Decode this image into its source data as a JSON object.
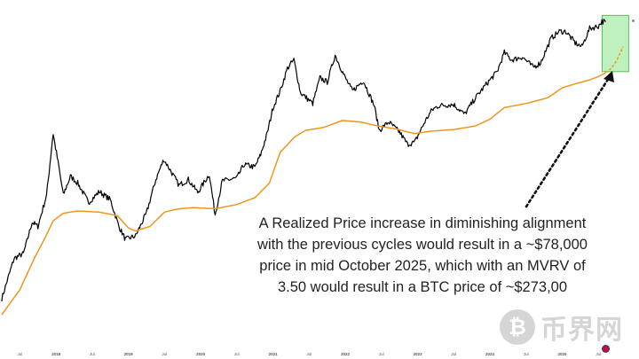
{
  "chart_data": {
    "type": "line",
    "title": "",
    "xlabel": "",
    "ylabel": "",
    "x_ticks": [
      "Jul",
      "2018",
      "Jul",
      "2019",
      "Jul",
      "2020",
      "Jul",
      "2021",
      "Jul",
      "2022",
      "Jul",
      "2023",
      "Jul",
      "2024",
      "Jul",
      "2025",
      "Jul"
    ],
    "x_range": [
      2017.25,
      2025.62
    ],
    "y_scale": "log",
    "y_axis_labels_visible": false,
    "grid": false,
    "series": [
      {
        "color": "#000000",
        "points": [
          [
            2017.25,
            1300
          ],
          [
            2017.42,
            2500
          ],
          [
            2017.55,
            2700
          ],
          [
            2017.67,
            4500
          ],
          [
            2017.75,
            4200
          ],
          [
            2017.87,
            7000
          ],
          [
            2017.96,
            19000
          ],
          [
            2018.04,
            11000
          ],
          [
            2018.1,
            7000
          ],
          [
            2018.2,
            9500
          ],
          [
            2018.3,
            8500
          ],
          [
            2018.45,
            6200
          ],
          [
            2018.6,
            7400
          ],
          [
            2018.75,
            6500
          ],
          [
            2018.87,
            4200
          ],
          [
            2018.96,
            3400
          ],
          [
            2019.1,
            3600
          ],
          [
            2019.25,
            5200
          ],
          [
            2019.38,
            9000
          ],
          [
            2019.49,
            12500
          ],
          [
            2019.58,
            10500
          ],
          [
            2019.7,
            8200
          ],
          [
            2019.83,
            9000
          ],
          [
            2019.96,
            7300
          ],
          [
            2020.12,
            9800
          ],
          [
            2020.2,
            5100
          ],
          [
            2020.3,
            8800
          ],
          [
            2020.5,
            9200
          ],
          [
            2020.6,
            11500
          ],
          [
            2020.75,
            11000
          ],
          [
            2020.83,
            13500
          ],
          [
            2020.92,
            19000
          ],
          [
            2021.0,
            29000
          ],
          [
            2021.1,
            38000
          ],
          [
            2021.2,
            55000
          ],
          [
            2021.29,
            63000
          ],
          [
            2021.38,
            37000
          ],
          [
            2021.55,
            31000
          ],
          [
            2021.65,
            47000
          ],
          [
            2021.75,
            44000
          ],
          [
            2021.86,
            68000
          ],
          [
            2022.0,
            47000
          ],
          [
            2022.1,
            38000
          ],
          [
            2022.25,
            45000
          ],
          [
            2022.4,
            30000
          ],
          [
            2022.47,
            20000
          ],
          [
            2022.6,
            23000
          ],
          [
            2022.75,
            19500
          ],
          [
            2022.86,
            16000
          ],
          [
            2022.96,
            16500
          ],
          [
            2023.1,
            23000
          ],
          [
            2023.2,
            28000
          ],
          [
            2023.3,
            30000
          ],
          [
            2023.5,
            30500
          ],
          [
            2023.65,
            26000
          ],
          [
            2023.8,
            34000
          ],
          [
            2023.96,
            43000
          ],
          [
            2024.1,
            52000
          ],
          [
            2024.2,
            71000
          ],
          [
            2024.3,
            63000
          ],
          [
            2024.45,
            66000
          ],
          [
            2024.6,
            56000
          ],
          [
            2024.7,
            60000
          ],
          [
            2024.85,
            90000
          ],
          [
            2024.96,
            100000
          ],
          [
            2025.05,
            100000
          ],
          [
            2025.18,
            83000
          ],
          [
            2025.27,
            78000
          ],
          [
            2025.38,
            105000
          ],
          [
            2025.5,
            109000
          ],
          [
            2025.55,
            118000
          ],
          [
            2025.6,
            117000
          ]
        ]
      },
      {
        "color": "#f0951d",
        "points": [
          [
            2017.25,
            1000
          ],
          [
            2017.5,
            1500
          ],
          [
            2017.7,
            2500
          ],
          [
            2017.85,
            3500
          ],
          [
            2017.96,
            4600
          ],
          [
            2018.1,
            5200
          ],
          [
            2018.3,
            5400
          ],
          [
            2018.6,
            5300
          ],
          [
            2018.85,
            5000
          ],
          [
            2019.0,
            4100
          ],
          [
            2019.1,
            3900
          ],
          [
            2019.3,
            4200
          ],
          [
            2019.5,
            5300
          ],
          [
            2019.7,
            5600
          ],
          [
            2019.9,
            5700
          ],
          [
            2020.2,
            5600
          ],
          [
            2020.5,
            6000
          ],
          [
            2020.75,
            6700
          ],
          [
            2020.95,
            8500
          ],
          [
            2021.1,
            14000
          ],
          [
            2021.3,
            18000
          ],
          [
            2021.45,
            20000
          ],
          [
            2021.7,
            21000
          ],
          [
            2021.96,
            23500
          ],
          [
            2022.2,
            23000
          ],
          [
            2022.45,
            21500
          ],
          [
            2022.7,
            20500
          ],
          [
            2022.96,
            19000
          ],
          [
            2023.2,
            19800
          ],
          [
            2023.5,
            20300
          ],
          [
            2023.8,
            21500
          ],
          [
            2024.0,
            24000
          ],
          [
            2024.2,
            29000
          ],
          [
            2024.5,
            31000
          ],
          [
            2024.8,
            34000
          ],
          [
            2025.0,
            40000
          ],
          [
            2025.2,
            43000
          ],
          [
            2025.35,
            45000
          ],
          [
            2025.5,
            48000
          ],
          [
            2025.6,
            51000
          ]
        ]
      },
      {
        "color": "#f0951d",
        "dashed": true,
        "points": [
          [
            2025.6,
            51000
          ],
          [
            2025.68,
            55000
          ],
          [
            2025.75,
            62000
          ],
          [
            2025.8,
            70000
          ],
          [
            2025.84,
            78000
          ]
        ]
      }
    ],
    "annotation_lines": [
      "A Realized Price increase in diminishing alignment",
      "with the previous cycles would result in a ~$78,000",
      "price in mid October 2025, which with an MVRV of",
      "3.50 would result in a BTC price of ~$273,00"
    ],
    "highlight_color": "#8be68b"
  },
  "watermark": {
    "logo": "₿",
    "text": "币界网"
  }
}
